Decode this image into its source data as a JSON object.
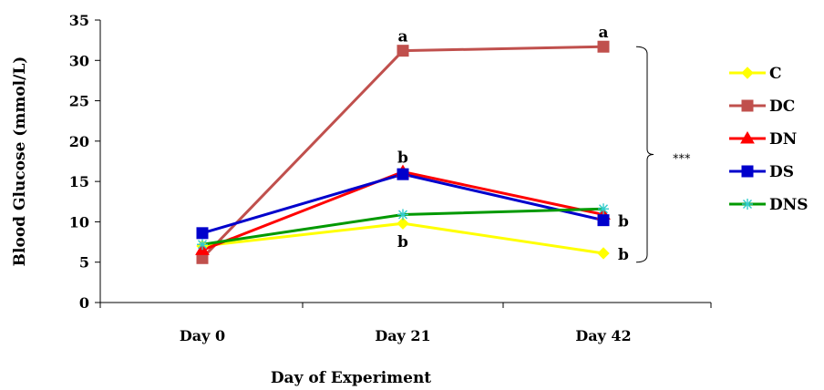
{
  "chart_data": {
    "type": "line",
    "categories": [
      "Day 0",
      "Day 21",
      "Day 42"
    ],
    "xlabel": "Day of Experiment",
    "ylabel": "Blood Glucose (mmol/L)",
    "ylim": [
      0,
      35
    ],
    "yticks": [
      "0",
      "5",
      "10",
      "15",
      "20",
      "25",
      "30",
      "35"
    ],
    "grid": false,
    "legend_position": "right",
    "series": [
      {
        "name": "C",
        "color": "#ffff00",
        "marker": "diamond",
        "values": [
          7.0,
          9.8,
          6.1
        ]
      },
      {
        "name": "DC",
        "color": "#c0504d",
        "marker": "square",
        "values": [
          5.5,
          31.2,
          31.7
        ]
      },
      {
        "name": "DN",
        "color": "#ff0000",
        "marker": "triangle",
        "values": [
          6.5,
          16.2,
          10.9
        ]
      },
      {
        "name": "DS",
        "color": "#0000cc",
        "marker": "square",
        "values": [
          8.6,
          15.9,
          10.2
        ]
      },
      {
        "name": "DNS",
        "color": "#009900",
        "marker": "star",
        "values": [
          7.2,
          10.9,
          11.6
        ]
      }
    ],
    "annotations": [
      {
        "text": "a",
        "category": "Day 21",
        "y": 31.2,
        "position": "above"
      },
      {
        "text": "a",
        "category": "Day 42",
        "y": 31.7,
        "position": "above"
      },
      {
        "text": "b",
        "category": "Day 21",
        "y": 16.2,
        "position": "above"
      },
      {
        "text": "b",
        "category": "Day 21",
        "y": 9.8,
        "position": "below"
      },
      {
        "text": "b",
        "category": "Day 42",
        "y": 10.2,
        "position": "right"
      },
      {
        "text": "b",
        "category": "Day 42",
        "y": 6.1,
        "position": "right"
      }
    ],
    "significance": {
      "text": "***",
      "bracket_from": 5.0,
      "bracket_to": 31.7
    }
  }
}
